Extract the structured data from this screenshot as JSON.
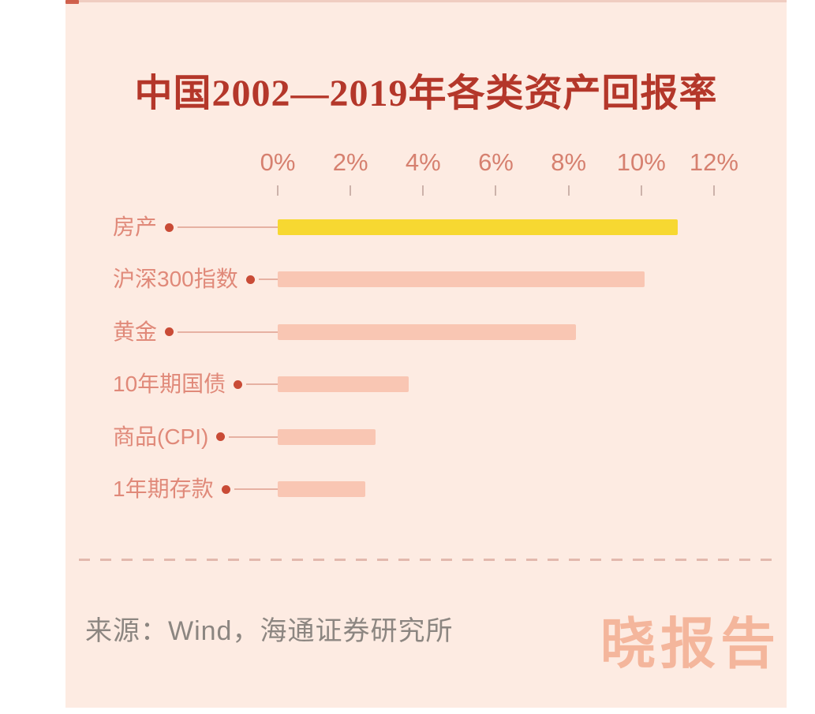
{
  "title": "中国2002—2019年各类资产回报率",
  "chart_data": {
    "type": "bar",
    "orientation": "horizontal",
    "title": "中国2002—2019年各类资产回报率",
    "categories": [
      "房产",
      "沪深300指数",
      "黄金",
      "10年期国债",
      "商品(CPI)",
      "1年期存款"
    ],
    "values": [
      11,
      10.1,
      8.2,
      3.6,
      2.7,
      2.4
    ],
    "unit": "%",
    "xlim": [
      0,
      12
    ],
    "x_tick_labels": [
      "0%",
      "2%",
      "4%",
      "6%",
      "8%",
      "10%",
      "12%"
    ],
    "x_tick_values": [
      0,
      2,
      4,
      6,
      8,
      10,
      12
    ],
    "grid": false,
    "legend": false,
    "highlight_index": 0,
    "bar_colors": [
      "#f7d831",
      "#f9c6b3",
      "#f9c6b3",
      "#f9c6b3",
      "#f9c6b3",
      "#f9c6b3"
    ]
  },
  "footer": {
    "source": "来源：Wind，海通证券研究所",
    "watermark": "晓报告"
  },
  "colors": {
    "panel_bg": "#fdebe2",
    "title": "#b4372a",
    "axis_label": "#d6806f",
    "tick": "#bfa49c",
    "category_label": "#e08979",
    "dot": "#c94b36",
    "leader_line": "#e6b1a2",
    "bar_highlight": "#f7d831",
    "bar_default": "#f9c6b3",
    "divider": "#dcaca0",
    "source_text": "#8c8681",
    "watermark": "#ec8258"
  }
}
